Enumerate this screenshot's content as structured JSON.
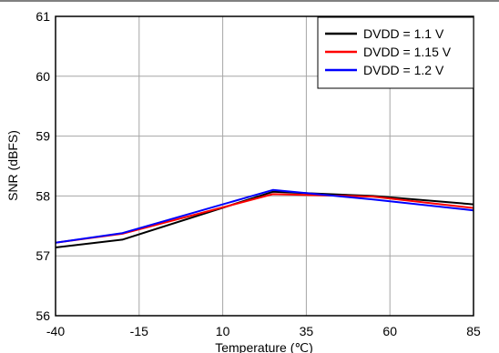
{
  "chart_data": {
    "type": "line",
    "title": "",
    "xlabel": "Temperature (℃)",
    "ylabel": "SNR (dBFS)",
    "xlim": [
      -40,
      85
    ],
    "ylim": [
      56,
      61
    ],
    "xticks": [
      -40,
      -15,
      10,
      35,
      60,
      85
    ],
    "yticks": [
      56,
      57,
      58,
      59,
      60,
      61
    ],
    "grid": true,
    "legend_position": "top-right",
    "series": [
      {
        "name": "DVDD = 1.1 V",
        "color": "#000000",
        "x": [
          -40,
          -20,
          25,
          55,
          85
        ],
        "y": [
          57.14,
          57.27,
          58.07,
          58.0,
          57.86
        ]
      },
      {
        "name": "DVDD = 1.15 V",
        "color": "#ff0000",
        "x": [
          -40,
          -20,
          25,
          55,
          85
        ],
        "y": [
          57.22,
          57.37,
          58.03,
          57.99,
          57.8
        ]
      },
      {
        "name": "DVDD = 1.2 V",
        "color": "#0000ff",
        "x": [
          -40,
          -20,
          25,
          55,
          85
        ],
        "y": [
          57.22,
          57.38,
          58.1,
          57.94,
          57.76
        ]
      }
    ]
  }
}
